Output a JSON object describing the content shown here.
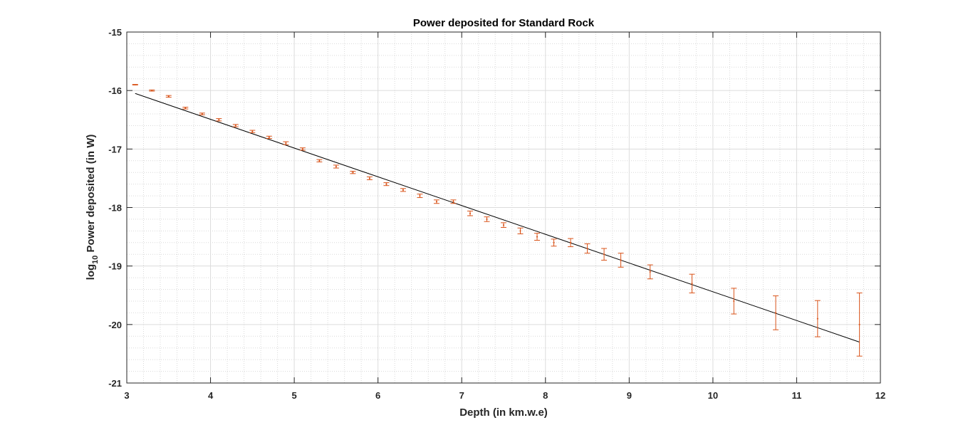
{
  "chart_data": {
    "type": "scatter",
    "title": "Power deposited for Standard Rock",
    "xlabel": "Depth (in km.w.e)",
    "ylabel_prefix": "log",
    "ylabel_subscript": "10",
    "ylabel_suffix": " Power deposited (in W)",
    "xlim": [
      3,
      12
    ],
    "ylim": [
      -21,
      -15
    ],
    "xticks": [
      3,
      4,
      5,
      6,
      7,
      8,
      9,
      10,
      11,
      12
    ],
    "yticks": [
      -15,
      -16,
      -17,
      -18,
      -19,
      -20,
      -21
    ],
    "grid": true,
    "minor_grid": true,
    "series": [
      {
        "kind": "errorbar",
        "color": "#D95319",
        "x": [
          3.1,
          3.3,
          3.5,
          3.7,
          3.9,
          4.1,
          4.3,
          4.5,
          4.7,
          4.9,
          5.1,
          5.3,
          5.5,
          5.7,
          5.9,
          6.1,
          6.3,
          6.5,
          6.7,
          6.9,
          7.1,
          7.3,
          7.5,
          7.7,
          7.9,
          8.1,
          8.3,
          8.5,
          8.7,
          8.9,
          9.25,
          9.75,
          10.25,
          10.75,
          11.25,
          11.75
        ],
        "y": [
          -15.9,
          -16.0,
          -16.1,
          -16.3,
          -16.4,
          -16.5,
          -16.6,
          -16.7,
          -16.8,
          -16.9,
          -17.0,
          -17.2,
          -17.3,
          -17.4,
          -17.5,
          -17.6,
          -17.7,
          -17.8,
          -17.9,
          -17.9,
          -18.1,
          -18.2,
          -18.3,
          -18.4,
          -18.5,
          -18.6,
          -18.6,
          -18.7,
          -18.8,
          -18.9,
          -19.1,
          -19.3,
          -19.6,
          -19.8,
          -19.9,
          -20.0
        ],
        "err": [
          0.005,
          0.01,
          0.015,
          0.015,
          0.015,
          0.02,
          0.02,
          0.02,
          0.02,
          0.025,
          0.02,
          0.02,
          0.025,
          0.02,
          0.025,
          0.025,
          0.025,
          0.03,
          0.03,
          0.03,
          0.04,
          0.04,
          0.04,
          0.05,
          0.06,
          0.06,
          0.07,
          0.08,
          0.1,
          0.12,
          0.12,
          0.16,
          0.22,
          0.29,
          0.31,
          0.54
        ]
      },
      {
        "kind": "fit_line",
        "color": "#000000",
        "x": [
          3.1,
          11.75
        ],
        "y": [
          -16.05,
          -20.3
        ]
      }
    ]
  }
}
